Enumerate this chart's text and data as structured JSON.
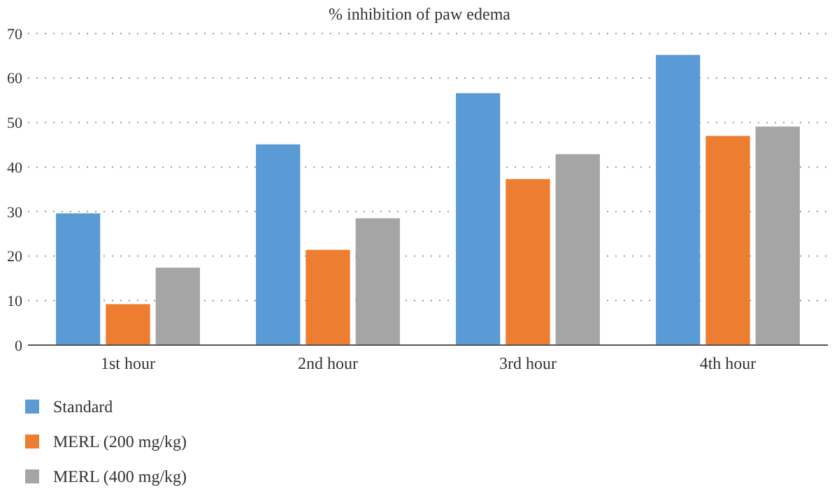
{
  "chart_data": {
    "type": "bar",
    "title": "% inhibition of paw edema",
    "categories": [
      "1st hour",
      "2nd hour",
      "3rd hour",
      "4th hour"
    ],
    "series": [
      {
        "name": "Standard",
        "color": "#5b9bd5",
        "values": [
          29.6,
          45.1,
          56.6,
          65.2
        ]
      },
      {
        "name": "MERL (200 mg/kg)",
        "color": "#ed7d31",
        "values": [
          9.2,
          21.4,
          37.3,
          47.0
        ]
      },
      {
        "name": "MERL (400 mg/kg)",
        "color": "#a5a5a5",
        "values": [
          17.4,
          28.5,
          42.9,
          49.1
        ]
      }
    ],
    "ylim": [
      0,
      70
    ],
    "yticks": [
      0,
      10,
      20,
      30,
      40,
      50,
      60,
      70
    ],
    "grid": "y",
    "legend": "bottom left"
  }
}
